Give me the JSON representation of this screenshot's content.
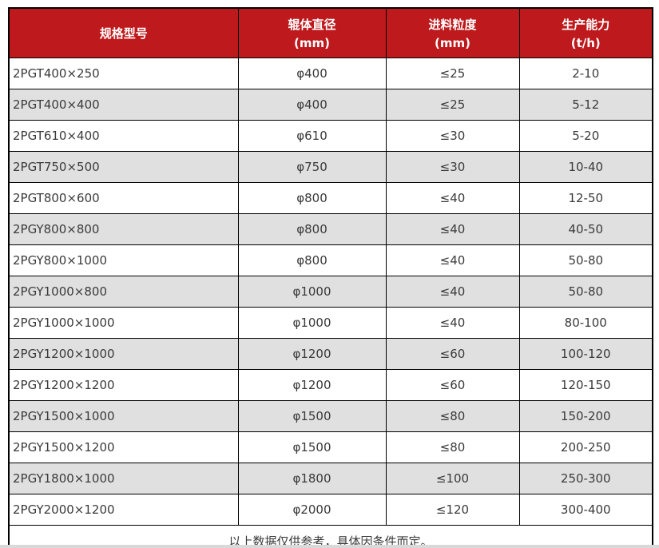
{
  "table": {
    "columns": [
      {
        "label": "规格型号",
        "unit": ""
      },
      {
        "label": "辊体直径",
        "unit": "(mm)"
      },
      {
        "label": "进料粒度",
        "unit": "(mm)"
      },
      {
        "label": "生产能力",
        "unit": "(t/h)"
      }
    ],
    "rows": [
      [
        "2PGT400×250",
        "φ400",
        "≤25",
        "2-10"
      ],
      [
        "2PGT400×400",
        "φ400",
        "≤25",
        "5-12"
      ],
      [
        "2PGT610×400",
        "φ610",
        "≤30",
        "5-20"
      ],
      [
        "2PGT750×500",
        "φ750",
        "≤30",
        "10-40"
      ],
      [
        "2PGT800×600",
        "φ800",
        "≤40",
        "12-50"
      ],
      [
        "2PGY800×800",
        "φ800",
        "≤40",
        "40-50"
      ],
      [
        "2PGY800×1000",
        "φ800",
        "≤40",
        "50-80"
      ],
      [
        "2PGY1000×800",
        "φ1000",
        "≤40",
        "50-80"
      ],
      [
        "2PGY1000×1000",
        "φ1000",
        "≤40",
        "80-100"
      ],
      [
        "2PGY1200×1000",
        "φ1200",
        "≤60",
        "100-120"
      ],
      [
        "2PGY1200×1200",
        "φ1200",
        "≤60",
        "120-150"
      ],
      [
        "2PGY1500×1000",
        "φ1500",
        "≤80",
        "150-200"
      ],
      [
        "2PGY1500×1200",
        "φ1500",
        "≤80",
        "200-250"
      ],
      [
        "2PGY1800×1000",
        "φ1800",
        "≤100",
        "250-300"
      ],
      [
        "2PGY2000×1200",
        "φ2000",
        "≤120",
        "300-400"
      ]
    ],
    "footnote": "以上数据仅供参考，具体因条件而定。"
  },
  "colors": {
    "header_bg": "#be1a1d",
    "header_text": "#ffffff",
    "row_alt_bg": "#e0e0e0",
    "row_bg": "#ffffff",
    "border": "#000000",
    "body_text": "#3a3a3a"
  }
}
